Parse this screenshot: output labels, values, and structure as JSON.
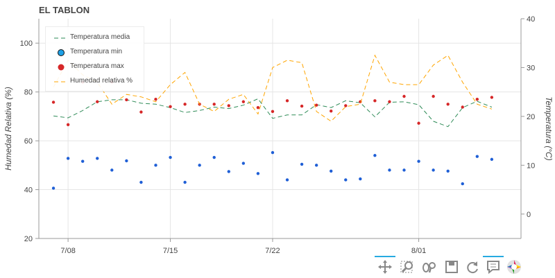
{
  "chart_data": {
    "type": "line",
    "title": "EL TABLON",
    "ylabel": "Humedad Relativa (%)",
    "y2label": "Temperatura (°C)",
    "ylim": [
      20,
      110
    ],
    "y2lim": [
      -5,
      40
    ],
    "yticks": [
      20,
      40,
      60,
      80,
      100
    ],
    "y2ticks": [
      0,
      10,
      20,
      30,
      40
    ],
    "x_start": "2017-07-06",
    "x_end": "2017-08-08",
    "xticks": [
      {
        "date": "2017-07-08",
        "label": "7/08"
      },
      {
        "date": "2017-07-15",
        "label": "7/15"
      },
      {
        "date": "2017-07-22",
        "label": "7/22"
      },
      {
        "date": "2017-08-01",
        "label": "8/01"
      }
    ],
    "grid": true,
    "legend_placement": "top-left",
    "x": [
      "2017-07-07",
      "2017-07-08",
      "2017-07-09",
      "2017-07-10",
      "2017-07-11",
      "2017-07-12",
      "2017-07-13",
      "2017-07-14",
      "2017-07-15",
      "2017-07-16",
      "2017-07-17",
      "2017-07-18",
      "2017-07-19",
      "2017-07-20",
      "2017-07-21",
      "2017-07-22",
      "2017-07-23",
      "2017-07-24",
      "2017-07-25",
      "2017-07-26",
      "2017-07-27",
      "2017-07-28",
      "2017-07-29",
      "2017-07-30",
      "2017-07-31",
      "2017-08-01",
      "2017-08-02",
      "2017-08-03",
      "2017-08-04",
      "2017-08-05",
      "2017-08-06"
    ],
    "series": [
      {
        "name": "Temperatura media",
        "axis": "right",
        "style": "dashed",
        "color": "#2e8b57",
        "values": [
          20.1,
          19.7,
          21.2,
          23.0,
          23.4,
          23.4,
          22.7,
          22.5,
          21.8,
          20.8,
          21.2,
          21.9,
          21.6,
          22.3,
          23.6,
          19.6,
          20.3,
          20.3,
          22.4,
          21.8,
          23.2,
          22.8,
          19.9,
          22.9,
          23.0,
          22.4,
          19.0,
          17.9,
          21.8,
          23.1,
          21.9
        ]
      },
      {
        "name": "Temperatura min",
        "axis": "right",
        "style": "marker",
        "color": "#1f5fd6",
        "values": [
          5.3,
          11.4,
          10.8,
          11.4,
          9.0,
          10.9,
          6.5,
          10.0,
          11.6,
          6.5,
          10.0,
          11.6,
          8.7,
          10.4,
          8.3,
          12.6,
          7.0,
          10.2,
          10.0,
          8.8,
          7.0,
          7.2,
          12.0,
          9.0,
          9.0,
          10.8,
          9.0,
          8.8,
          6.2,
          11.8,
          11.2
        ]
      },
      {
        "name": "Temperatura max",
        "axis": "right",
        "style": "marker",
        "color": "#d62728",
        "values": [
          22.9,
          18.3,
          27.0,
          23.0,
          27.0,
          23.4,
          20.9,
          23.5,
          22.0,
          22.5,
          22.5,
          22.5,
          22.2,
          23.0,
          21.8,
          21.0,
          23.2,
          22.1,
          22.3,
          21.1,
          22.2,
          23.0,
          23.2,
          23.0,
          24.1,
          18.6,
          24.1,
          22.5,
          21.9,
          23.5,
          23.9
        ]
      },
      {
        "name": "Humedad relativa %",
        "axis": "left",
        "style": "dashed",
        "color": "#ffa500",
        "values": [
          82,
          93,
          87,
          84,
          75,
          79,
          78,
          76,
          83,
          88,
          75,
          72,
          77,
          79,
          71,
          90,
          93,
          92,
          72,
          68,
          74,
          75,
          95,
          84,
          83,
          83,
          91,
          95,
          84,
          75,
          73
        ]
      }
    ]
  },
  "toolbar": {
    "tools": [
      "pan-tool",
      "box-zoom-tool",
      "wheel-zoom-tool",
      "save-tool",
      "reset-tool",
      "hover-tool",
      "bokeh-logo"
    ]
  }
}
